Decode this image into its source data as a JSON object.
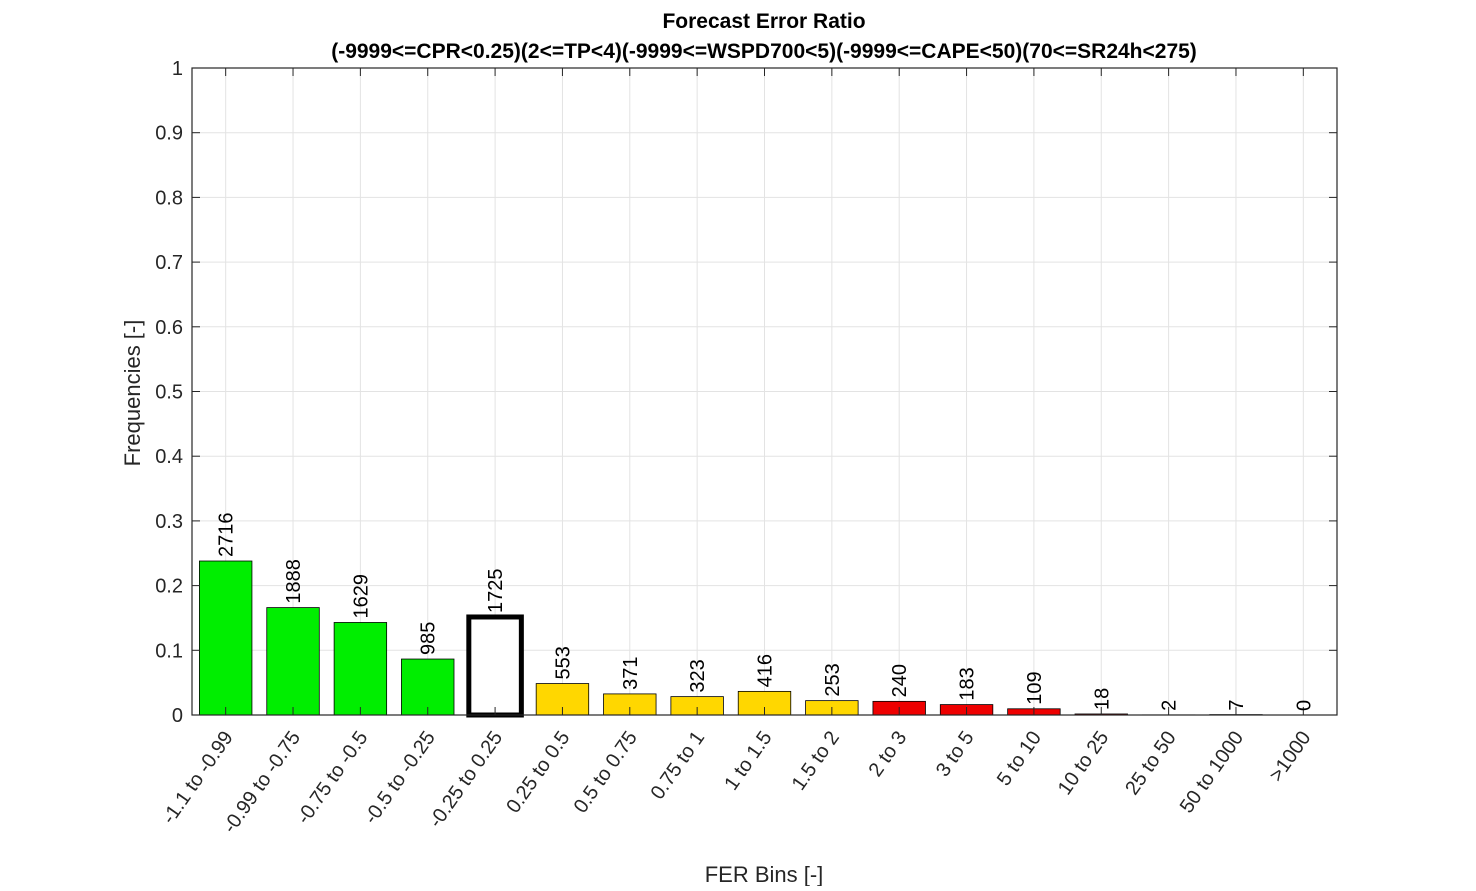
{
  "chart_data": {
    "type": "bar",
    "title": "Forecast Error Ratio",
    "subtitle": "(-9999<=CPR<0.25)(2<=TP<4)(-9999<=WSPD700<5)(-9999<=CAPE<50)(70<=SR24h<275)",
    "xlabel": "FER Bins [-]",
    "ylabel": "Frequencies [-]",
    "ylim": [
      0,
      1
    ],
    "yticks": [
      "0",
      "0.1",
      "0.2",
      "0.3",
      "0.4",
      "0.5",
      "0.6",
      "0.7",
      "0.8",
      "0.9",
      "1"
    ],
    "grid": true,
    "categories": [
      "-1.1 to -0.99",
      "-0.99 to -0.75",
      "-0.75 to -0.5",
      "-0.5 to -0.25",
      "-0.25 to 0.25",
      "0.25 to 0.5",
      "0.5 to 0.75",
      "0.75 to 1",
      "1 to 1.5",
      "1.5 to 2",
      "2 to 3",
      "3 to 5",
      "5 to 10",
      "10 to 25",
      "25 to 50",
      "50 to 1000",
      ">1000"
    ],
    "values": [
      0.238,
      0.166,
      0.143,
      0.0865,
      0.1515,
      0.0486,
      0.0326,
      0.0284,
      0.0365,
      0.0222,
      0.0211,
      0.0161,
      0.0096,
      0.0016,
      0.0002,
      0.0006,
      0
    ],
    "labels": [
      "2716",
      "1888",
      "1629",
      "985",
      "1725",
      "553",
      "371",
      "323",
      "416",
      "253",
      "240",
      "183",
      "109",
      "18",
      "2",
      "7",
      "0"
    ],
    "colors": [
      "#00ee00",
      "#00ee00",
      "#00ee00",
      "#00ee00",
      "#ffffff",
      "#ffd700",
      "#ffd700",
      "#ffd700",
      "#ffd700",
      "#ffd700",
      "#ee0000",
      "#ee0000",
      "#ee0000",
      "#ee0000",
      "#ee0000",
      "#ee0000",
      "#ee0000"
    ],
    "highlight_index": 4
  }
}
